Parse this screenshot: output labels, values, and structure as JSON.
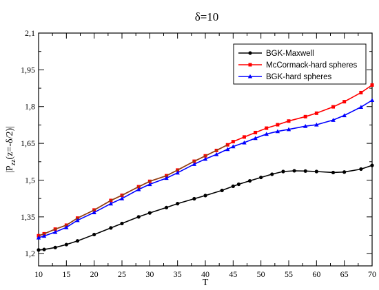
{
  "chart_data": {
    "type": "line",
    "title": "δ=10",
    "xlabel": "T",
    "ylabel": "|P_zz(z=-δ/2)|",
    "ylabel_parts": {
      "prefix": "|P",
      "subscript": "zz",
      "suffix": "(z=-δ/2)|"
    },
    "xlim": [
      10,
      70
    ],
    "ylim": [
      1.15,
      2.1
    ],
    "x_ticks": [
      10,
      15,
      20,
      25,
      30,
      35,
      40,
      45,
      50,
      55,
      60,
      65,
      70
    ],
    "y_ticks": [
      "1,2",
      "1,35",
      "1,5",
      "1,65",
      "1,8",
      "1,95",
      "2,1"
    ],
    "y_tick_values": [
      1.2,
      1.35,
      1.5,
      1.65,
      1.8,
      1.95,
      2.1
    ],
    "grid": false,
    "legend_placement": "top-right",
    "series": [
      {
        "name": "BGK-Maxwell",
        "color": "#000000",
        "marker": "circle",
        "x": [
          10,
          11,
          13,
          15,
          17,
          20,
          23,
          25,
          28,
          30,
          33,
          35,
          38,
          40,
          43,
          45,
          46,
          48,
          50,
          52,
          54,
          56,
          58,
          60,
          63,
          65,
          68,
          70
        ],
        "y": [
          1.215,
          1.217,
          1.225,
          1.237,
          1.252,
          1.278,
          1.305,
          1.323,
          1.35,
          1.366,
          1.388,
          1.404,
          1.424,
          1.437,
          1.458,
          1.475,
          1.483,
          1.497,
          1.511,
          1.524,
          1.535,
          1.538,
          1.537,
          1.535,
          1.531,
          1.533,
          1.545,
          1.56
        ]
      },
      {
        "name": "McCormack-hard spheres",
        "color": "#ff0000",
        "marker": "square",
        "x": [
          10,
          11,
          13,
          15,
          17,
          20,
          23,
          25,
          28,
          30,
          33,
          35,
          38,
          40,
          42,
          44,
          45,
          47,
          49,
          51,
          53,
          55,
          58,
          60,
          63,
          65,
          68,
          70
        ],
        "y": [
          1.273,
          1.281,
          1.3,
          1.316,
          1.345,
          1.378,
          1.417,
          1.438,
          1.473,
          1.495,
          1.518,
          1.541,
          1.577,
          1.599,
          1.621,
          1.644,
          1.657,
          1.676,
          1.694,
          1.712,
          1.726,
          1.741,
          1.759,
          1.773,
          1.799,
          1.82,
          1.857,
          1.888
        ]
      },
      {
        "name": "BGK-hard spheres",
        "color": "#0000ff",
        "marker": "triangle",
        "x": [
          10,
          11,
          13,
          15,
          17,
          20,
          23,
          25,
          28,
          30,
          33,
          35,
          38,
          40,
          42,
          44,
          45,
          47,
          49,
          51,
          53,
          55,
          58,
          60,
          63,
          65,
          68,
          70
        ],
        "y": [
          1.265,
          1.272,
          1.288,
          1.307,
          1.336,
          1.368,
          1.404,
          1.425,
          1.462,
          1.483,
          1.508,
          1.53,
          1.565,
          1.586,
          1.605,
          1.626,
          1.637,
          1.653,
          1.671,
          1.688,
          1.699,
          1.707,
          1.72,
          1.726,
          1.745,
          1.764,
          1.798,
          1.826
        ]
      }
    ],
    "overlay_line": {
      "color": "#8b4513",
      "x": [
        10,
        44
      ],
      "y": [
        1.273,
        1.644
      ]
    }
  }
}
